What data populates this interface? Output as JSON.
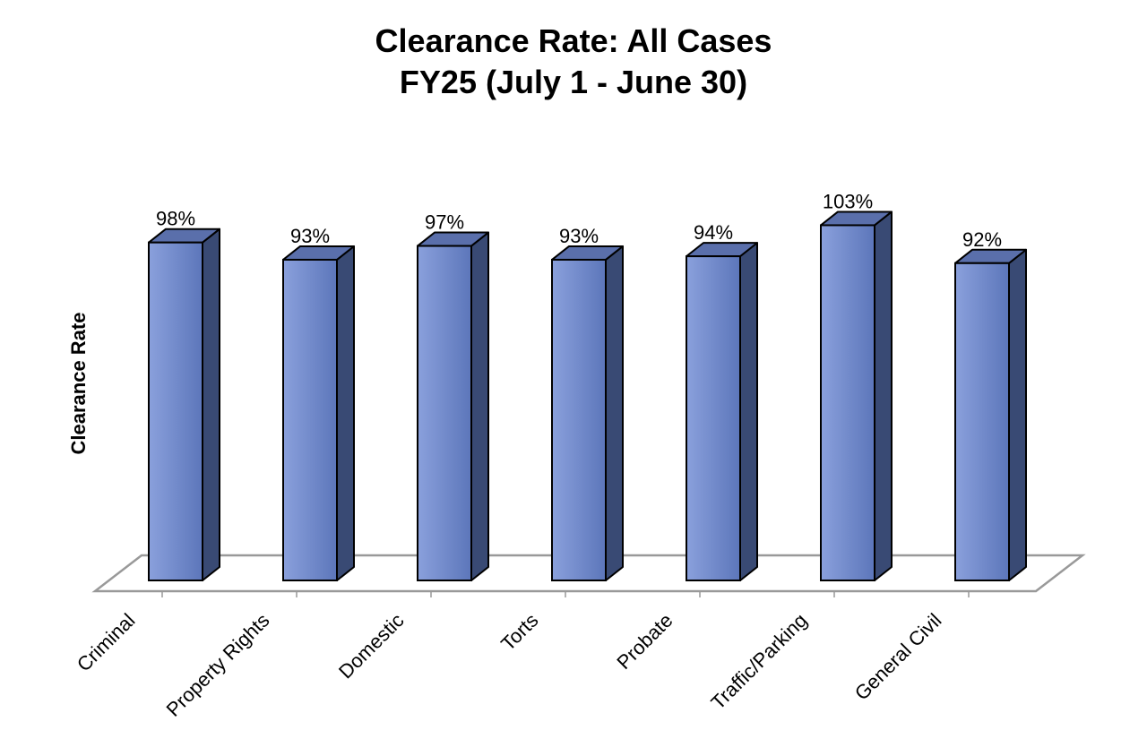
{
  "chart_data": {
    "type": "bar",
    "title_lines": [
      "Clearance Rate: All Cases",
      "FY25 (July 1 - June 30)"
    ],
    "xlabel": "",
    "ylabel": "Clearance Rate",
    "categories": [
      "Criminal",
      "Property Rights",
      "Domestic",
      "Torts",
      "Probate",
      "Traffic/Parking",
      "General Civil"
    ],
    "values": [
      98,
      93,
      97,
      93,
      94,
      103,
      92
    ],
    "data_labels": [
      "98%",
      "93%",
      "97%",
      "93%",
      "94%",
      "103%",
      "92%"
    ],
    "unit": "%",
    "ylim": [
      0,
      103
    ],
    "grid": false,
    "legend": "none",
    "style": "3d-column"
  },
  "colors": {
    "bar_front_light": "#8aa0dc",
    "bar_front_dark": "#5c76ba",
    "bar_top": "#5a6fab",
    "bar_side": "#394a74",
    "outline": "#000000",
    "floor": "#999999"
  }
}
